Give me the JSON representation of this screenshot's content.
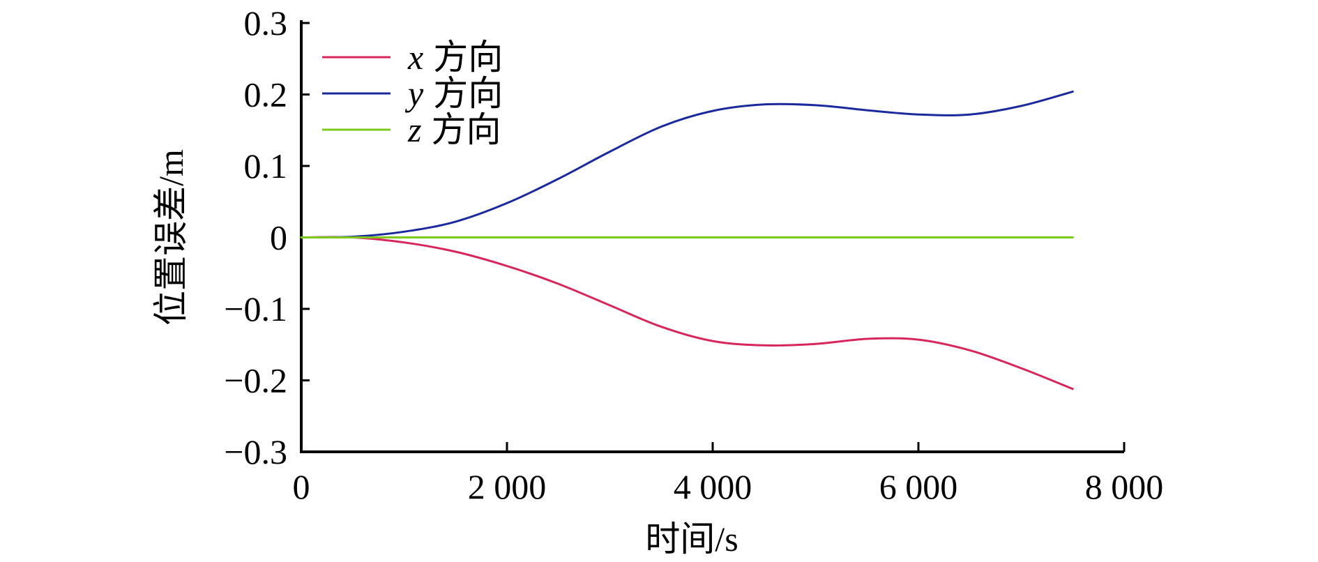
{
  "chart_data": {
    "type": "line",
    "xlabel": "时间/s",
    "ylabel": "位置误差/m",
    "xlim": [
      0,
      8000
    ],
    "ylim": [
      -0.3,
      0.3
    ],
    "x_ticks": [
      0,
      2000,
      4000,
      6000,
      8000
    ],
    "x_tick_labels": [
      "0",
      "2 000",
      "4 000",
      "6 000",
      "8 000"
    ],
    "y_ticks": [
      0.3,
      0.2,
      0.1,
      0,
      -0.1,
      -0.2,
      -0.3
    ],
    "y_tick_labels": [
      "0.3",
      "0.2",
      "0.1",
      "0",
      "−0.1",
      "−0.2",
      "−0.3"
    ],
    "grid": false,
    "legend_position": "top-left",
    "x": [
      0,
      500,
      1000,
      1500,
      2000,
      2500,
      3000,
      3500,
      4000,
      4500,
      5000,
      5500,
      6000,
      6500,
      7000,
      7500
    ],
    "series": [
      {
        "name": "x 方向",
        "var": "x",
        "suffix": "方向",
        "color": "#d6265c",
        "values": [
          0,
          0,
          -0.007,
          -0.02,
          -0.04,
          -0.065,
          -0.095,
          -0.125,
          -0.145,
          -0.151,
          -0.149,
          -0.142,
          -0.143,
          -0.158,
          -0.183,
          -0.212
        ]
      },
      {
        "name": "y 方向",
        "var": "y",
        "suffix": "方向",
        "color": "#1a2a9c",
        "values": [
          0,
          0.001,
          0.008,
          0.022,
          0.048,
          0.082,
          0.12,
          0.155,
          0.177,
          0.186,
          0.185,
          0.178,
          0.172,
          0.172,
          0.184,
          0.204
        ]
      },
      {
        "name": "z 方向",
        "var": "z",
        "suffix": "方向",
        "color": "#7ec81e",
        "values": [
          0,
          0,
          0,
          0,
          0,
          0,
          0,
          0,
          0,
          0,
          0,
          0,
          0,
          0,
          0,
          0
        ]
      }
    ]
  }
}
